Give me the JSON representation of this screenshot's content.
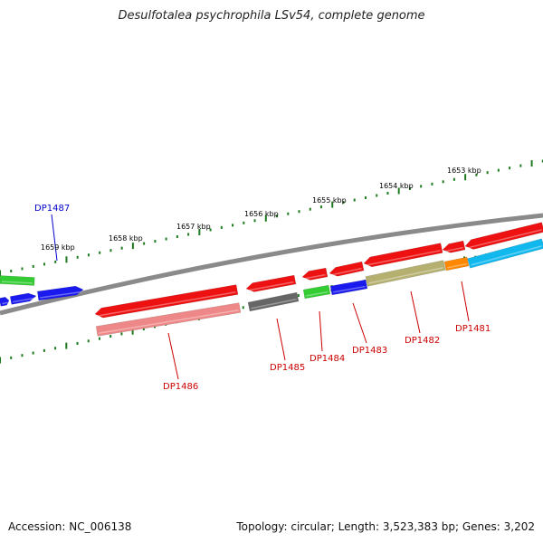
{
  "title": "Desulfotalea psychrophila LSv54, complete genome",
  "footer": {
    "accession": "Accession: NC_006138",
    "stats": "Topology: circular; Length: 3,523,383 bp; Genes: 3,202"
  },
  "colors": {
    "backbone": "#8a8a8a",
    "tick": "#1e7a1e",
    "label_red": "#cc0000",
    "label_blue": "#0000cc",
    "red": "#ee1111",
    "pink": "#ee8888",
    "gray": "#666666",
    "green": "#33cc33",
    "blue": "#1a1aee",
    "olive": "#b5b070",
    "orange": "#ff8800",
    "cyan": "#10b8ee"
  },
  "scale_labels": [
    "1659 kbp",
    "1658 kbp",
    "1657 kbp",
    "1656 kbp",
    "1655 kbp",
    "1654 kbp",
    "1653 kbp"
  ],
  "gene_labels": [
    {
      "id": "dp1487",
      "text": "DP1487",
      "color": "blue"
    },
    {
      "id": "dp1486",
      "text": "DP1486",
      "color": "red"
    },
    {
      "id": "dp1485",
      "text": "DP1485",
      "color": "red"
    },
    {
      "id": "dp1484",
      "text": "DP1484",
      "color": "red"
    },
    {
      "id": "dp1483",
      "text": "DP1483",
      "color": "red"
    },
    {
      "id": "dp1482",
      "text": "DP1482",
      "color": "red"
    },
    {
      "id": "dp1481",
      "text": "DP1481",
      "color": "red"
    }
  ]
}
